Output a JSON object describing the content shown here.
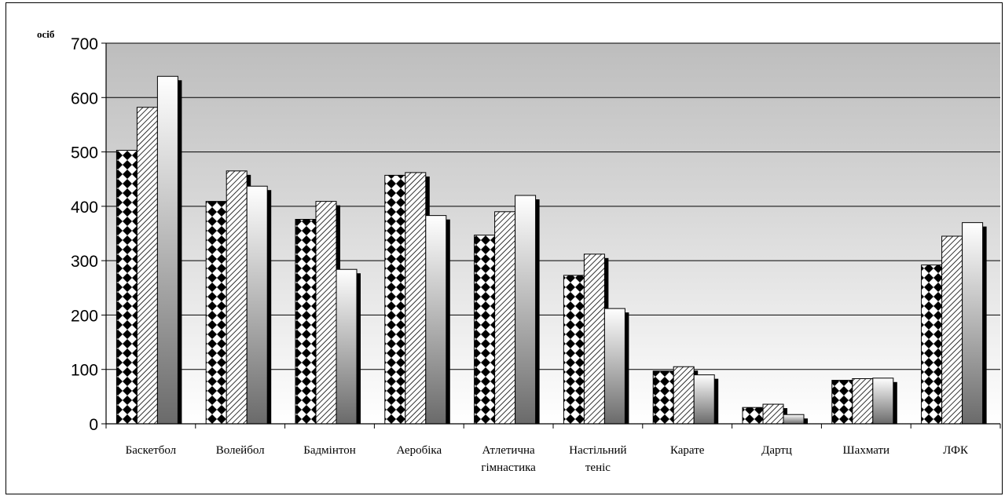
{
  "chart_data": {
    "type": "bar",
    "ylabel": "осіб",
    "ylim": [
      0,
      700
    ],
    "yticks": [
      0,
      100,
      200,
      300,
      400,
      500,
      600,
      700
    ],
    "grid": true,
    "categories": [
      [
        "Баскетбол"
      ],
      [
        "Волейбол"
      ],
      [
        "Бадмінтон"
      ],
      [
        "Аеробіка"
      ],
      [
        "Атлетична",
        "гімнастика"
      ],
      [
        "Настільний",
        "теніс"
      ],
      [
        "Карате"
      ],
      [
        "Дартц"
      ],
      [
        "Шахмати"
      ],
      [
        "ЛФК"
      ]
    ],
    "series": [
      {
        "values": [
          503,
          409,
          376,
          457,
          347,
          273,
          97,
          30,
          80,
          292
        ],
        "pattern": "checker"
      },
      {
        "values": [
          582,
          465,
          409,
          462,
          390,
          312,
          105,
          36,
          83,
          345
        ],
        "pattern": "hatch"
      },
      {
        "values": [
          639,
          437,
          284,
          383,
          420,
          212,
          90,
          17,
          84,
          370
        ],
        "pattern": "gradient"
      }
    ],
    "colors": {
      "plot_top": "#c0c0c0",
      "plot_bottom": "#ffffff",
      "bar_gradient_top": "#ffffff",
      "bar_gradient_bottom": "#6e6e6e"
    }
  }
}
